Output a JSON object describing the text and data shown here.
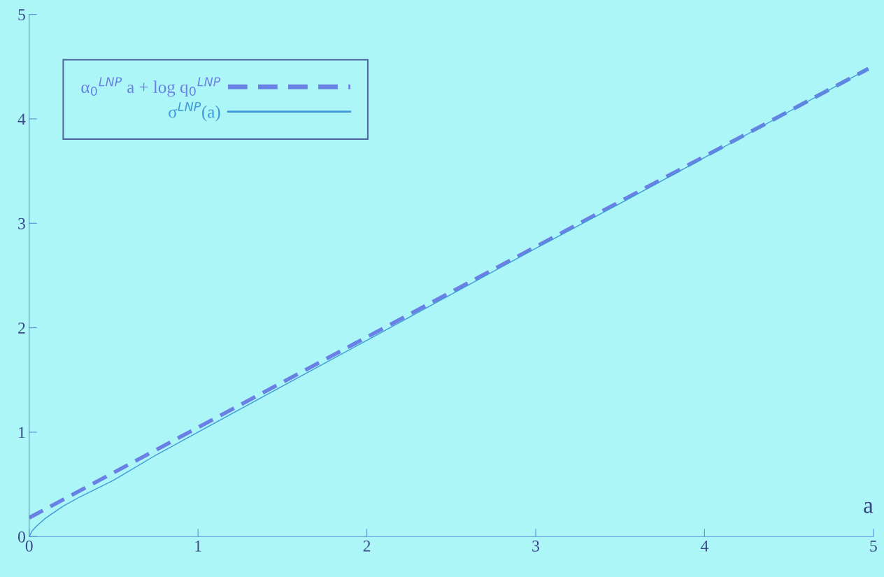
{
  "chart_data": {
    "type": "line",
    "xlabel": "a",
    "series": [
      {
        "name": "α$_{0}$$^{LNP}$ a + log q$_{0}$$^{LNP}$",
        "color": "#6a80e4",
        "line_style": "dashed",
        "x": [
          0,
          4.97
        ],
        "values": [
          0.18,
          4.48
        ]
      },
      {
        "name": "σ$^{LNP}$(a)",
        "color": "#3f98d8",
        "line_style": "solid",
        "x": [
          0,
          0.02,
          0.05,
          0.1,
          0.2,
          0.3,
          0.5,
          0.75,
          1,
          1.5,
          2,
          2.5,
          3,
          3.5,
          4,
          4.5,
          4.97
        ],
        "values": [
          0,
          0.06,
          0.11,
          0.18,
          0.29,
          0.38,
          0.54,
          0.78,
          1.0,
          1.44,
          1.88,
          2.32,
          2.76,
          3.19,
          3.63,
          4.07,
          4.48
        ]
      }
    ],
    "xlim": [
      0,
      5
    ],
    "ylim": [
      0,
      5
    ],
    "xticks": [
      0,
      1,
      2,
      3,
      4,
      5
    ],
    "yticks": [
      0,
      1,
      2,
      3,
      4,
      5
    ],
    "grid": false,
    "legend": "top left"
  }
}
